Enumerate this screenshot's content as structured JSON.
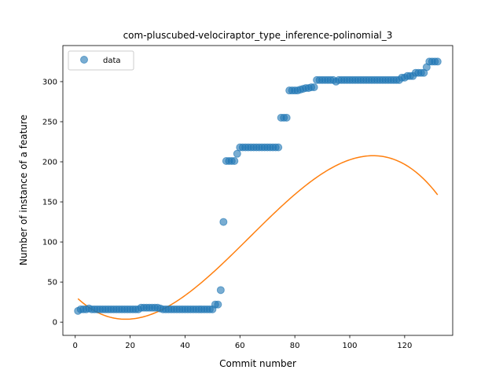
{
  "chart_data": {
    "type": "scatter",
    "title": "com-pluscubed-velociraptor_type_inference-polinomial_3",
    "xlabel": "Commit number",
    "ylabel": "Number of instance of a feature",
    "xlim": [
      -4.5,
      137.5
    ],
    "ylim": [
      -16.5,
      345
    ],
    "xticks": [
      0,
      20,
      40,
      60,
      80,
      100,
      120
    ],
    "yticks": [
      0,
      50,
      100,
      150,
      200,
      250,
      300
    ],
    "grid": false,
    "legend": {
      "placement": "top-left",
      "entries": [
        "data"
      ]
    },
    "colors": {
      "data": "#1f77b4",
      "fit": "#ff7f0e"
    },
    "series": [
      {
        "name": "data",
        "kind": "scatter",
        "x": [
          1,
          2,
          3,
          4,
          5,
          6,
          7,
          8,
          9,
          10,
          11,
          12,
          13,
          14,
          15,
          16,
          17,
          18,
          19,
          20,
          21,
          22,
          23,
          24,
          25,
          26,
          27,
          28,
          29,
          30,
          31,
          32,
          33,
          34,
          35,
          36,
          37,
          38,
          39,
          40,
          41,
          42,
          43,
          44,
          45,
          46,
          47,
          48,
          49,
          50,
          51,
          52,
          53,
          54,
          55,
          56,
          57,
          58,
          59,
          60,
          61,
          62,
          63,
          64,
          65,
          66,
          67,
          68,
          69,
          70,
          71,
          72,
          73,
          74,
          75,
          76,
          77,
          78,
          79,
          80,
          81,
          82,
          83,
          84,
          85,
          86,
          87,
          88,
          89,
          90,
          91,
          92,
          93,
          94,
          95,
          96,
          97,
          98,
          99,
          100,
          101,
          102,
          103,
          104,
          105,
          106,
          107,
          108,
          109,
          110,
          111,
          112,
          113,
          114,
          115,
          116,
          117,
          118,
          119,
          120,
          121,
          122,
          123,
          124,
          125,
          126,
          127,
          128,
          129,
          130,
          131,
          132
        ],
        "y": [
          14,
          16,
          16,
          16,
          17,
          16,
          16,
          16,
          16,
          16,
          16,
          16,
          16,
          16,
          16,
          16,
          16,
          16,
          16,
          16,
          16,
          16,
          16,
          18,
          18,
          18,
          18,
          18,
          18,
          18,
          17,
          16,
          16,
          16,
          16,
          16,
          16,
          16,
          16,
          16,
          16,
          16,
          16,
          16,
          16,
          16,
          16,
          16,
          16,
          16,
          22,
          22,
          40,
          125,
          201,
          201,
          201,
          201,
          210,
          218,
          218,
          218,
          218,
          218,
          218,
          218,
          218,
          218,
          218,
          218,
          218,
          218,
          218,
          218,
          255,
          255,
          255,
          289,
          289,
          289,
          289,
          290,
          291,
          292,
          292,
          293,
          293,
          302,
          302,
          302,
          302,
          302,
          302,
          302,
          300,
          302,
          302,
          302,
          302,
          302,
          302,
          302,
          302,
          302,
          302,
          302,
          302,
          302,
          302,
          302,
          302,
          302,
          302,
          302,
          302,
          302,
          302,
          302,
          305,
          305,
          307,
          307,
          307,
          311,
          311,
          311,
          311,
          318,
          325,
          325,
          325,
          325
        ]
      },
      {
        "name": "",
        "kind": "line",
        "coefficients": [
          32.5,
          -3.33,
          0.106,
          -0.000557
        ]
      }
    ]
  }
}
